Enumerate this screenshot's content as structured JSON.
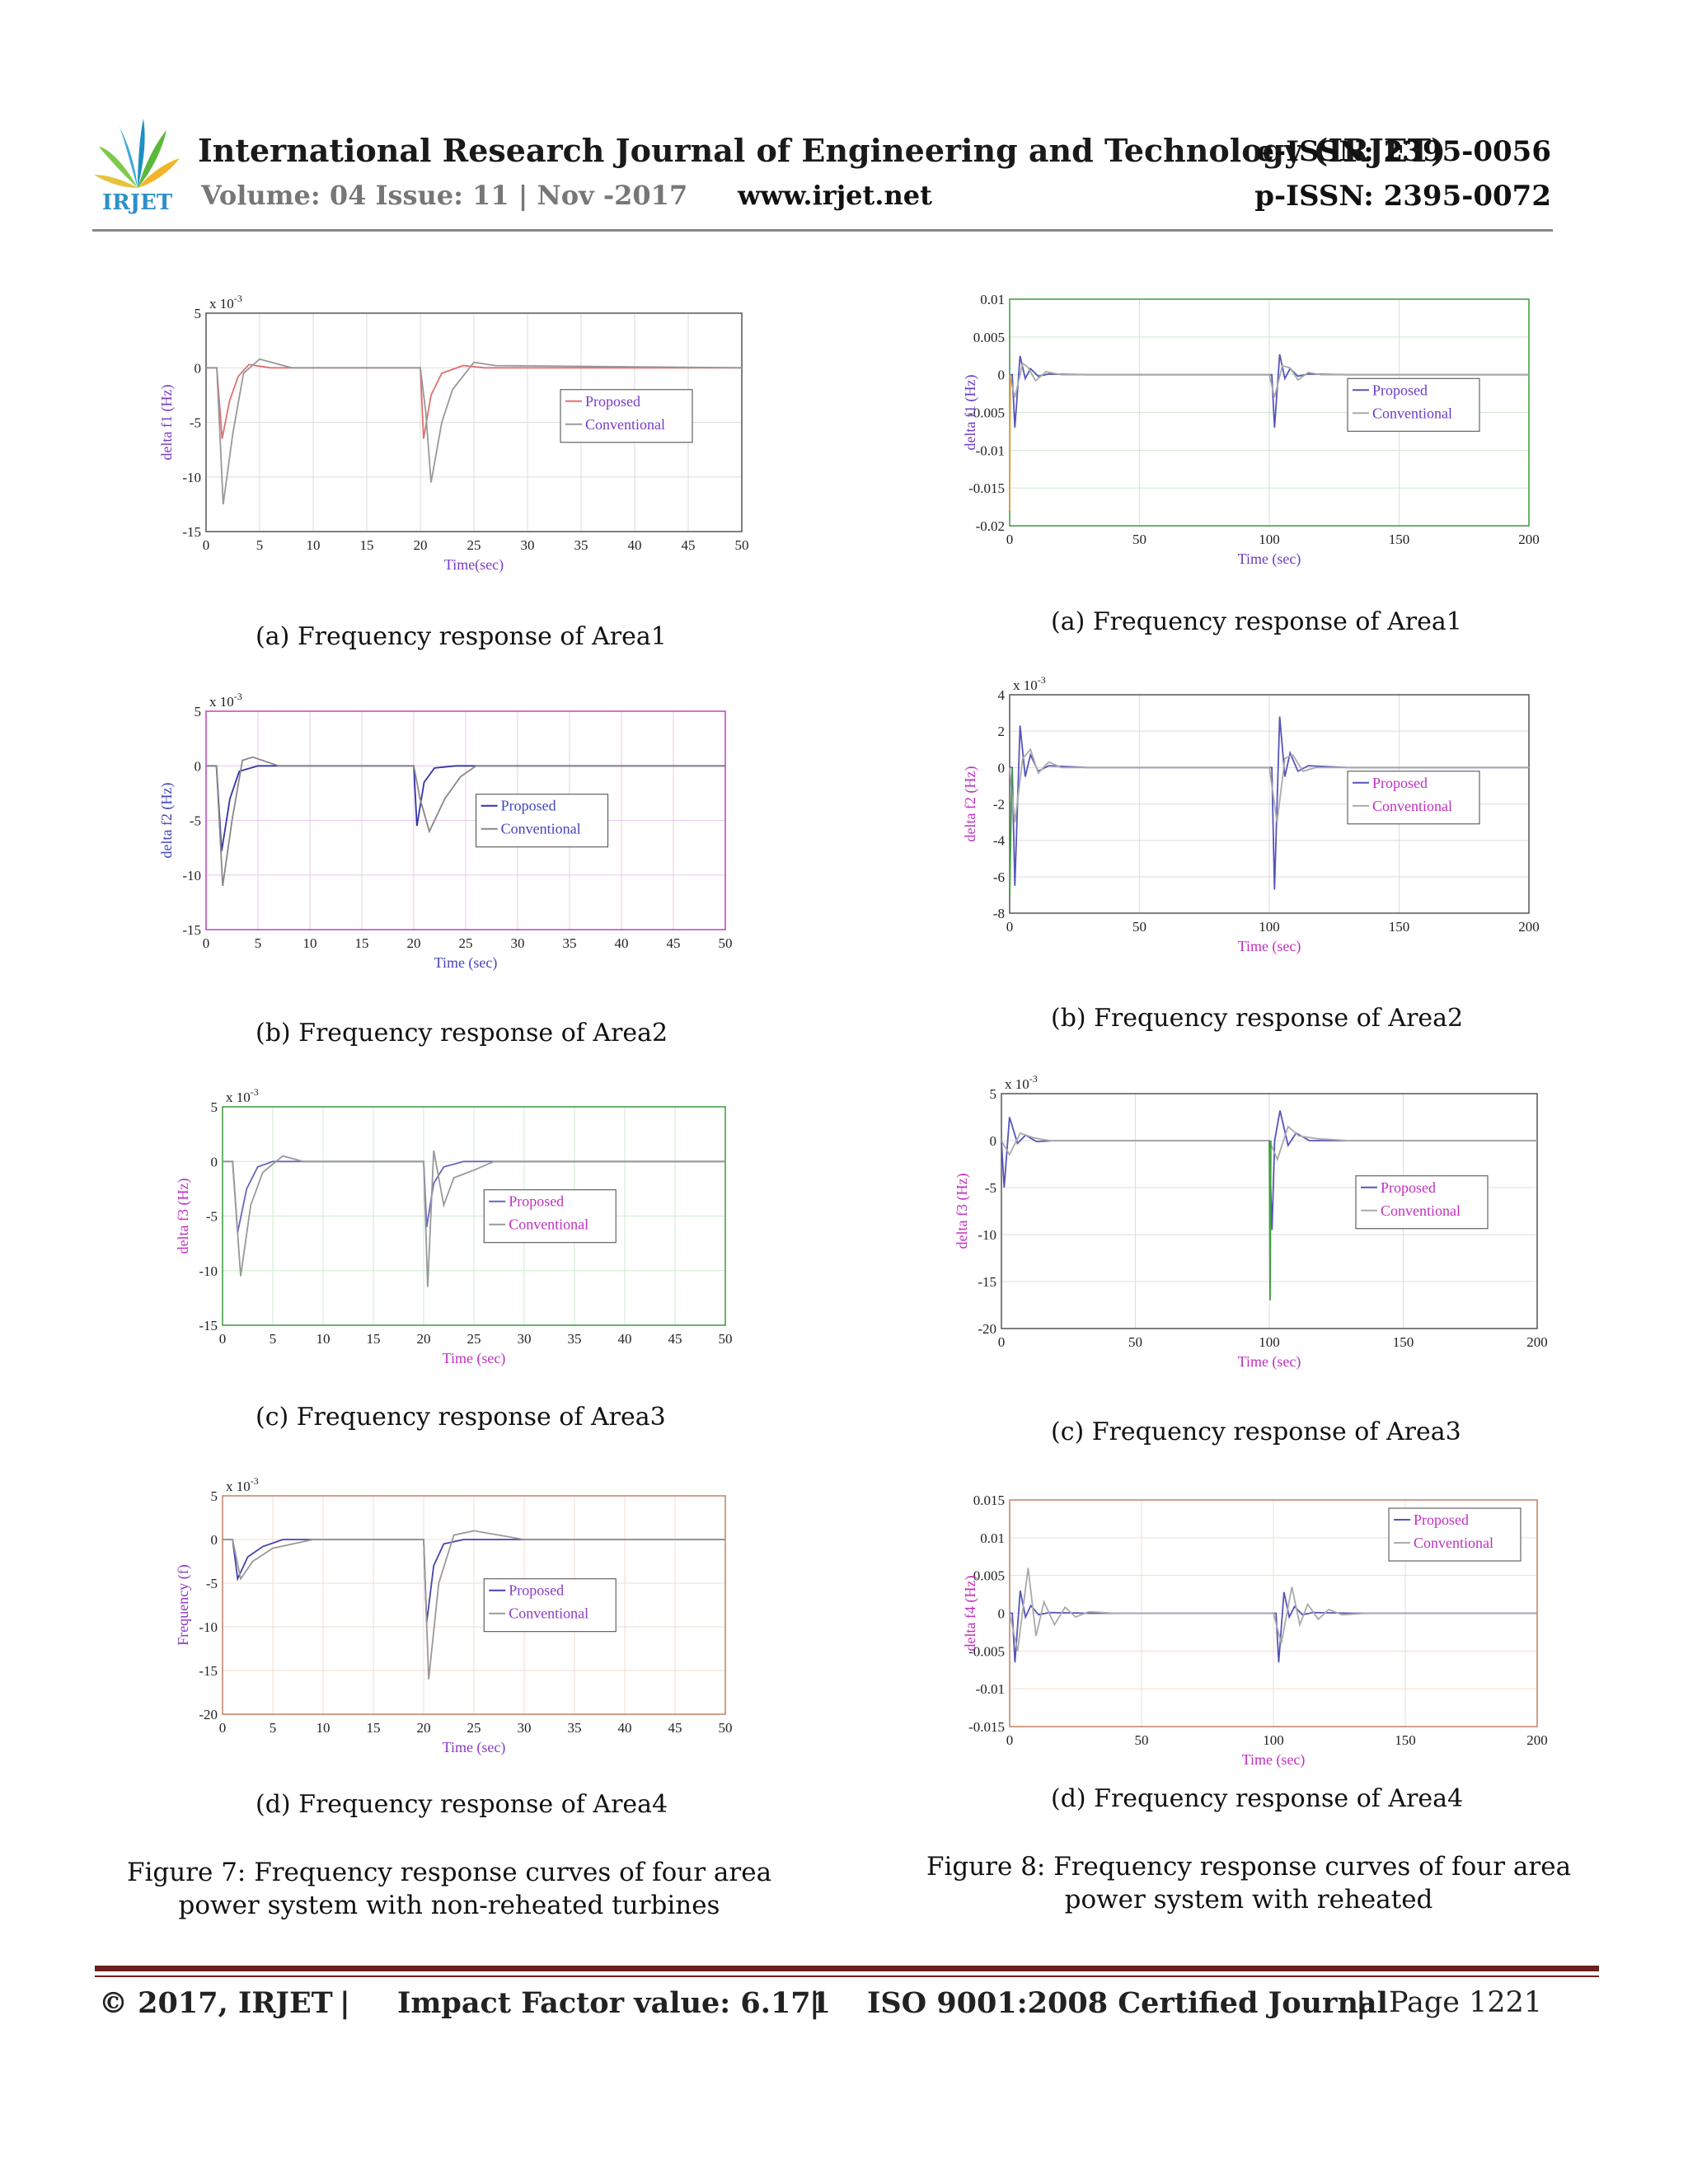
{
  "header": {
    "journal_title": "International Research Journal of Engineering and Technology (IRJET)",
    "eissn": "e-ISSN: 2395-0056",
    "volume": "Volume: 04 Issue: 11 | Nov -2017",
    "website": "www.irjet.net",
    "pissn": "p-ISSN: 2395-0072",
    "logo_text": "IRJET"
  },
  "left_captions": [
    "(a) Frequency response of Area1",
    "(b) Frequency response of Area2",
    "(c) Frequency response of Area3",
    "(d) Frequency response of Area4"
  ],
  "right_captions": [
    "(a) Frequency response of Area1",
    "(b) Frequency response of Area2",
    "(c) Frequency response of Area3",
    "(d) Frequency response of Area4"
  ],
  "figure7_caption": "Figure 7: Frequency response curves of four area power system with non-reheated turbines",
  "figure8_caption": "Figure 8: Frequency response curves of four area power system with reheated",
  "footer": {
    "copyright": "© 2017, IRJET",
    "sep": "|",
    "impact": "Impact Factor value: 6.171",
    "iso": "ISO 9001:2008 Certified Journal",
    "page": "Page 1221"
  },
  "chart_data": [
    {
      "type": "line",
      "ylabel": "delta f1 (Hz)",
      "xlabel": "Time(sec)",
      "exponent": "x 10-3",
      "xlim": [
        0,
        50
      ],
      "ylim": [
        -15,
        5
      ],
      "xticks": [
        0,
        5,
        10,
        15,
        20,
        25,
        30,
        35,
        40,
        45,
        50
      ],
      "yticks": [
        5,
        0,
        -5,
        -10,
        -15
      ],
      "axis_color": "#555555",
      "label_color": "#7a3cc4",
      "grid_color": "#dddddd",
      "legend_position": "right-middle",
      "series": [
        {
          "name": "Proposed",
          "color": "#e07070",
          "x": [
            0,
            1,
            1.5,
            2.2,
            3,
            4,
            6,
            20,
            20.3,
            21,
            22,
            24,
            26,
            50
          ],
          "y": [
            0,
            0,
            -6.5,
            -3,
            -0.8,
            0.3,
            0,
            0,
            -6.5,
            -2.5,
            -0.5,
            0.2,
            0,
            0
          ]
        },
        {
          "name": "Conventional",
          "color": "#999999",
          "x": [
            0,
            1,
            1.6,
            2.5,
            3.5,
            5,
            8,
            20,
            20.5,
            21,
            22,
            23,
            25,
            27,
            50
          ],
          "y": [
            0,
            0,
            -12.5,
            -6,
            -0.5,
            0.8,
            0,
            0,
            -4,
            -10.5,
            -5,
            -2,
            0.5,
            0.2,
            0
          ]
        }
      ]
    },
    {
      "type": "line",
      "ylabel": "delta f2 (Hz)",
      "xlabel": "Time (sec)",
      "exponent": "x 10-3",
      "xlim": [
        0,
        50
      ],
      "ylim": [
        -15,
        5
      ],
      "xticks": [
        0,
        5,
        10,
        15,
        20,
        25,
        30,
        35,
        40,
        45,
        50
      ],
      "yticks": [
        5,
        0,
        -5,
        -10,
        -15
      ],
      "axis_color": "#c040c0",
      "label_color": "#4444bb",
      "grid_color": "#e8c8e8",
      "legend_position": "center",
      "series": [
        {
          "name": "Proposed",
          "color": "#3333aa",
          "x": [
            0,
            1,
            1.5,
            2.3,
            3.2,
            5,
            20,
            20.3,
            21,
            22,
            24,
            50
          ],
          "y": [
            0,
            0,
            -7.8,
            -3,
            -0.5,
            0,
            0,
            -5.5,
            -1.5,
            -0.2,
            0,
            0
          ]
        },
        {
          "name": "Conventional",
          "color": "#888888",
          "x": [
            0,
            1,
            1.6,
            2.5,
            3.5,
            4.5,
            7,
            20,
            20.6,
            21.5,
            23,
            24.5,
            26,
            50
          ],
          "y": [
            0,
            0,
            -11,
            -5,
            0.5,
            0.8,
            0,
            0,
            -3,
            -6,
            -3,
            -1,
            0,
            0
          ]
        }
      ]
    },
    {
      "type": "line",
      "ylabel": "delta f3 (Hz)",
      "xlabel": "Time (sec)",
      "exponent": "x 10-3",
      "xlim": [
        0,
        50
      ],
      "ylim": [
        -15,
        5
      ],
      "xticks": [
        0,
        5,
        10,
        15,
        20,
        25,
        30,
        35,
        40,
        45,
        50
      ],
      "yticks": [
        5,
        0,
        -5,
        -10,
        -15
      ],
      "axis_color": "#3a9a3a",
      "label_color": "#c030c0",
      "grid_color": "#cfe8cf",
      "legend_position": "center",
      "series": [
        {
          "name": "Proposed",
          "color": "#6666bb",
          "x": [
            0,
            1,
            1.5,
            2.4,
            3.5,
            5,
            20,
            20.3,
            21,
            22,
            24,
            50
          ],
          "y": [
            0,
            0,
            -6.5,
            -2.5,
            -0.5,
            0,
            0,
            -6,
            -2,
            -0.5,
            0,
            0
          ]
        },
        {
          "name": "Conventional",
          "color": "#999999",
          "x": [
            0,
            1,
            1.8,
            2.8,
            4,
            6,
            8,
            20,
            20.4,
            21,
            22,
            23,
            25,
            27,
            50
          ],
          "y": [
            0,
            0,
            -10.5,
            -4,
            -1,
            0.5,
            0,
            0,
            -11.5,
            1,
            -4,
            -1.5,
            -0.8,
            0,
            0
          ]
        }
      ]
    },
    {
      "type": "line",
      "ylabel": "Frequency (f)",
      "xlabel": "Time (sec)",
      "exponent": "x 10-3",
      "xlim": [
        0,
        50
      ],
      "ylim": [
        -20,
        5
      ],
      "xticks": [
        0,
        5,
        10,
        15,
        20,
        25,
        30,
        35,
        40,
        45,
        50
      ],
      "yticks": [
        5,
        0,
        -5,
        -10,
        -15,
        -20
      ],
      "axis_color": "#c08060",
      "label_color": "#8a3cc4",
      "grid_color": "#f0dcd0",
      "legend_position": "center",
      "series": [
        {
          "name": "Proposed",
          "color": "#4444aa",
          "x": [
            0,
            1,
            1.5,
            2.5,
            4,
            6,
            20,
            20.3,
            21,
            22,
            24,
            50
          ],
          "y": [
            0,
            0,
            -4.5,
            -2,
            -0.8,
            0,
            0,
            -9.5,
            -3,
            -0.5,
            0,
            0
          ]
        },
        {
          "name": "Conventional",
          "color": "#999999",
          "x": [
            0,
            1,
            1.8,
            3,
            5,
            9,
            20,
            20.5,
            21.5,
            23,
            25,
            30,
            50
          ],
          "y": [
            0,
            0,
            -4.5,
            -2.5,
            -1,
            0,
            0,
            -16,
            -5,
            0.5,
            1,
            0,
            0
          ]
        }
      ]
    },
    {
      "type": "line",
      "ylabel": "delta f1 (Hz)",
      "xlabel": "Time (sec)",
      "xlim": [
        0,
        200
      ],
      "ylim": [
        -0.02,
        0.01
      ],
      "xticks": [
        0,
        50,
        100,
        150,
        200
      ],
      "yticks": [
        0.01,
        0.005,
        0,
        -0.005,
        -0.01,
        -0.015,
        -0.02
      ],
      "axis_color": "#3a9a3a",
      "label_color": "#6a3cc4",
      "grid_color": "#cfe8cf",
      "legend_position": "right-middle",
      "series": [
        {
          "name": "Proposed",
          "color": "#5555bb",
          "x": [
            0,
            1,
            2,
            4,
            6,
            8,
            11,
            15,
            30,
            100,
            101,
            102,
            104,
            106,
            108,
            111,
            115,
            130,
            200
          ],
          "y": [
            0,
            0,
            -0.007,
            0.0025,
            -0.0005,
            0.0008,
            -0.0002,
            0.0001,
            0,
            0,
            0,
            -0.007,
            0.0027,
            -0.0005,
            0.0008,
            -0.0002,
            0.0001,
            0,
            0
          ]
        },
        {
          "name": "Conventional",
          "color": "#aaaaaa",
          "x": [
            0,
            2,
            5,
            7,
            10,
            14,
            20,
            100,
            102,
            105,
            108,
            111,
            115,
            120,
            200
          ],
          "y": [
            0,
            -0.003,
            0.0015,
            0.001,
            -0.0008,
            0.0004,
            0,
            0,
            -0.003,
            0.0012,
            0.0009,
            -0.0007,
            0.0003,
            0,
            0
          ]
        },
        {
          "name": "",
          "color": "#d8a040",
          "x": [
            0,
            0.1,
            0.3
          ],
          "y": [
            -0.018,
            -0.008,
            0
          ]
        }
      ]
    },
    {
      "type": "line",
      "ylabel": "delta f2 (Hz)",
      "xlabel": "Time (sec)",
      "exponent": "x 10-3",
      "xlim": [
        0,
        200
      ],
      "ylim": [
        -8,
        4
      ],
      "xticks": [
        0,
        50,
        100,
        150,
        200
      ],
      "yticks": [
        4,
        2,
        0,
        -2,
        -4,
        -6,
        -8
      ],
      "axis_color": "#555555",
      "label_color": "#c030c0",
      "grid_color": "#dddddd",
      "legend_position": "right-middle",
      "series": [
        {
          "name": "Proposed",
          "color": "#5555bb",
          "x": [
            0,
            1,
            2,
            4,
            6,
            8,
            11,
            15,
            30,
            100,
            101,
            102,
            104,
            106,
            108,
            111,
            115,
            130,
            200
          ],
          "y": [
            0,
            0,
            -6.5,
            2.3,
            -0.5,
            0.7,
            -0.2,
            0.1,
            0,
            0,
            0,
            -6.7,
            2.8,
            -0.5,
            0.8,
            -0.2,
            0.1,
            0,
            0
          ]
        },
        {
          "name": "Conventional",
          "color": "#aaaaaa",
          "x": [
            0,
            2,
            5,
            8,
            11,
            15,
            20,
            100,
            103,
            106,
            109,
            113,
            118,
            200
          ],
          "y": [
            0,
            -3,
            0.5,
            1,
            -0.3,
            0.3,
            0,
            0,
            -3,
            0.5,
            0.7,
            -0.2,
            0,
            0
          ]
        },
        {
          "name": "",
          "color": "#40a040",
          "x": [
            0,
            0.5,
            1
          ],
          "y": [
            -7,
            -3,
            0
          ]
        }
      ]
    },
    {
      "type": "line",
      "ylabel": "delta f3 (Hz)",
      "xlabel": "Time (sec)",
      "exponent": "x 10-3",
      "xlim": [
        0,
        200
      ],
      "ylim": [
        -20,
        5
      ],
      "xticks": [
        0,
        50,
        100,
        150,
        200
      ],
      "yticks": [
        5,
        0,
        -5,
        -10,
        -15,
        -20
      ],
      "axis_color": "#555555",
      "label_color": "#c030c0",
      "grid_color": "#dddddd",
      "legend_position": "right-middle",
      "series": [
        {
          "name": "Proposed",
          "color": "#5555bb",
          "x": [
            0,
            1,
            3,
            6,
            9,
            13,
            20,
            35,
            100,
            101,
            102,
            104,
            107,
            110,
            115,
            135,
            200
          ],
          "y": [
            0,
            -5,
            2.5,
            -0.3,
            0.6,
            -0.1,
            0,
            0,
            0,
            -9.5,
            0,
            3.2,
            -0.5,
            0.8,
            0,
            0,
            0
          ]
        },
        {
          "name": "Conventional",
          "color": "#aaaaaa",
          "x": [
            0,
            3,
            7,
            12,
            18,
            30,
            100,
            103,
            107,
            111,
            118,
            130,
            200
          ],
          "y": [
            0,
            -1.5,
            0.8,
            0.3,
            0,
            0,
            0,
            -2,
            1.5,
            0.5,
            0.2,
            0,
            0
          ]
        },
        {
          "name": "",
          "color": "#40a040",
          "x": [
            100,
            100.3,
            100.6
          ],
          "y": [
            0,
            -17,
            0
          ]
        }
      ]
    },
    {
      "type": "line",
      "ylabel": "delta f4 (Hz)",
      "xlabel": "Time (sec)",
      "xlim": [
        0,
        200
      ],
      "ylim": [
        -0.015,
        0.015
      ],
      "xticks": [
        0,
        50,
        100,
        150,
        200
      ],
      "yticks": [
        0.015,
        0.01,
        0.005,
        0,
        -0.005,
        -0.01,
        -0.015
      ],
      "axis_color": "#c08060",
      "label_color": "#c030c0",
      "grid_color": "#f0dcd0",
      "legend_position": "top-right",
      "series": [
        {
          "name": "Proposed",
          "color": "#5555bb",
          "x": [
            0,
            1,
            2,
            4,
            6,
            8,
            11,
            15,
            30,
            100,
            101,
            102,
            104,
            106,
            108,
            111,
            115,
            130,
            200
          ],
          "y": [
            0,
            0,
            -0.0065,
            0.003,
            -0.0005,
            0.001,
            -0.0002,
            0.0001,
            0,
            0,
            0,
            -0.0065,
            0.0028,
            -0.0005,
            0.0009,
            -0.0002,
            0.0001,
            0,
            0
          ]
        },
        {
          "name": "Conventional",
          "color": "#aaaaaa",
          "x": [
            0,
            3,
            7,
            10,
            13,
            17,
            21,
            25,
            30,
            40,
            100,
            103,
            107,
            110,
            113,
            117,
            121,
            126,
            135,
            200
          ],
          "y": [
            0,
            -0.005,
            0.006,
            -0.003,
            0.0015,
            -0.0015,
            0.0008,
            -0.0005,
            0.0002,
            0,
            0,
            -0.004,
            0.0035,
            -0.0015,
            0.0012,
            -0.0008,
            0.0005,
            -0.0002,
            0,
            0
          ]
        }
      ]
    }
  ]
}
